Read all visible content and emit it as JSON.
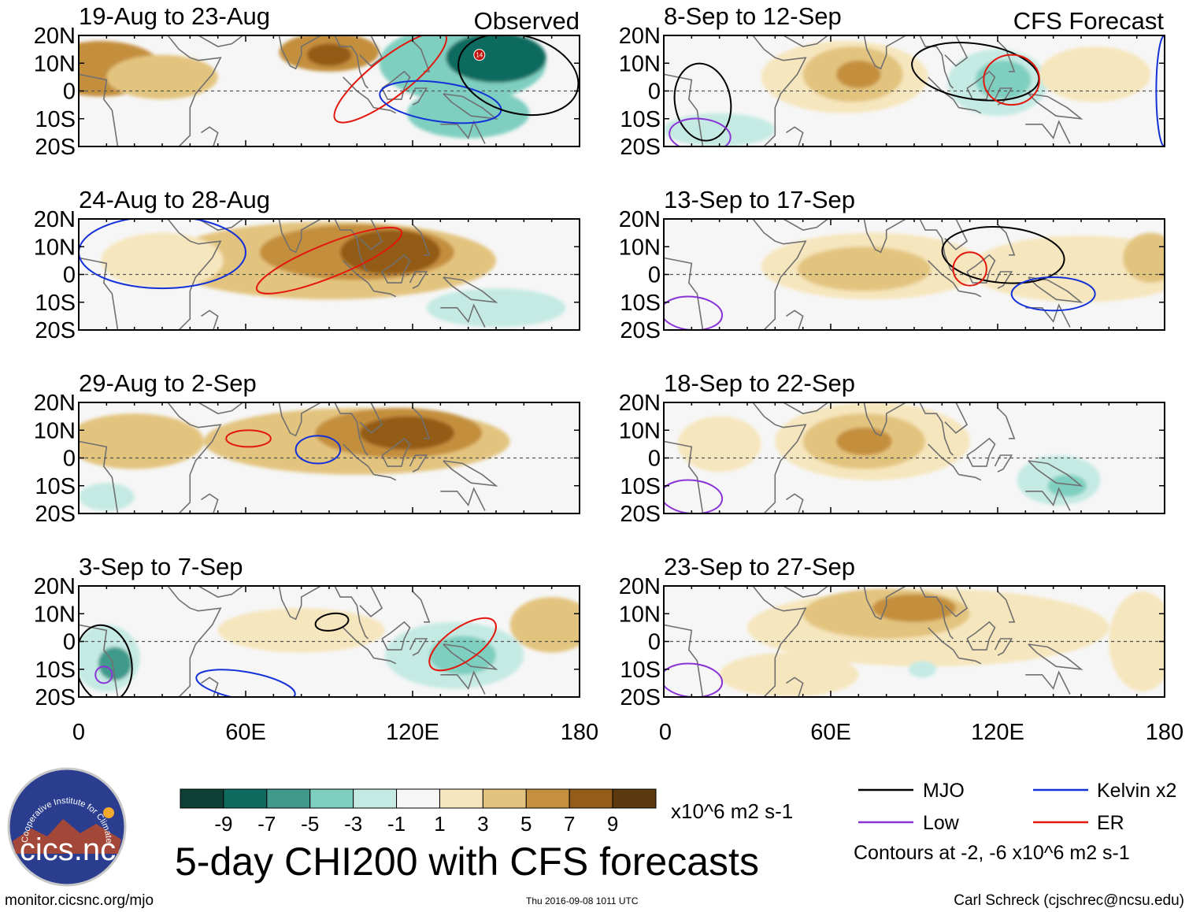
{
  "colors": {
    "scale": [
      "#0d3f36",
      "#0f6b5f",
      "#3f9a8c",
      "#7fcfc0",
      "#c5eae3",
      "#f6f6f6",
      "#f6e6bd",
      "#e3c47f",
      "#c48f3e",
      "#935c18",
      "#5a3810"
    ],
    "mjo": "#000000",
    "kelvin": "#1431d8",
    "low": "#8a33d6",
    "er": "#e2180e",
    "coast": "#707070"
  },
  "columns": {
    "left_label": "Observed",
    "right_label": "CFS Forecast"
  },
  "lat_labels": [
    "20N",
    "10N",
    "0",
    "10S",
    "20S"
  ],
  "lon_labels": [
    "0",
    "60E",
    "120E",
    "180"
  ],
  "panels": [
    {
      "title": "19-Aug to 23-Aug",
      "storm_label": "14",
      "blobs": [
        {
          "lon": 8,
          "lat": 8,
          "rx": 22,
          "ry": 10,
          "level": 3
        },
        {
          "lon": 90,
          "lat": 14,
          "rx": 18,
          "ry": 7,
          "level": 3
        },
        {
          "lon": 90,
          "lat": 13,
          "rx": 8,
          "ry": 4,
          "level": 4
        },
        {
          "lon": 30,
          "lat": 5,
          "rx": 20,
          "ry": 8,
          "level": 2
        },
        {
          "lon": 138,
          "lat": 10,
          "rx": 30,
          "ry": 14,
          "level": -2
        },
        {
          "lon": 150,
          "lat": 12,
          "rx": 18,
          "ry": 9,
          "level": -4
        },
        {
          "lon": 140,
          "lat": -8,
          "rx": 22,
          "ry": 9,
          "level": -2
        }
      ],
      "contours": [
        {
          "type": "er",
          "lon": 112,
          "lat": 5,
          "rx": 25,
          "ry": 7,
          "rot": -38
        },
        {
          "type": "kelvin",
          "lon": 130,
          "lat": -4,
          "rx": 22,
          "ry": 7,
          "rot": 8
        },
        {
          "type": "mjo",
          "lon": 158,
          "lat": 6,
          "rx": 22,
          "ry": 14,
          "rot": 15
        }
      ]
    },
    {
      "title": "24-Aug to 28-Aug",
      "blobs": [
        {
          "lon": 90,
          "lat": 5,
          "rx": 60,
          "ry": 14,
          "level": 2
        },
        {
          "lon": 100,
          "lat": 8,
          "rx": 35,
          "ry": 10,
          "level": 3
        },
        {
          "lon": 112,
          "lat": 8,
          "rx": 18,
          "ry": 8,
          "level": 4
        },
        {
          "lon": 30,
          "lat": 5,
          "rx": 22,
          "ry": 10,
          "level": 1
        },
        {
          "lon": 150,
          "lat": -12,
          "rx": 25,
          "ry": 7,
          "level": -1
        }
      ],
      "contours": [
        {
          "type": "kelvin",
          "lon": 30,
          "lat": 8,
          "rx": 30,
          "ry": 13,
          "rot": 0
        },
        {
          "type": "er",
          "lon": 90,
          "lat": 5,
          "rx": 28,
          "ry": 6,
          "rot": -22
        }
      ]
    },
    {
      "title": "29-Aug to 2-Sep",
      "blobs": [
        {
          "lon": 100,
          "lat": 6,
          "rx": 55,
          "ry": 12,
          "level": 2
        },
        {
          "lon": 115,
          "lat": 9,
          "rx": 30,
          "ry": 9,
          "level": 3
        },
        {
          "lon": 118,
          "lat": 9,
          "rx": 17,
          "ry": 6,
          "level": 4
        },
        {
          "lon": 20,
          "lat": 6,
          "rx": 25,
          "ry": 10,
          "level": 2
        },
        {
          "lon": 10,
          "lat": -14,
          "rx": 10,
          "ry": 5,
          "level": -1
        }
      ],
      "contours": [
        {
          "type": "er",
          "lon": 61,
          "lat": 7,
          "rx": 8,
          "ry": 3,
          "rot": 0
        },
        {
          "type": "kelvin",
          "lon": 86,
          "lat": 3,
          "rx": 8,
          "ry": 5,
          "rot": 0
        }
      ]
    },
    {
      "title": "3-Sep to 7-Sep",
      "blobs": [
        {
          "lon": 10,
          "lat": -6,
          "rx": 12,
          "ry": 12,
          "level": -1
        },
        {
          "lon": 13,
          "lat": -8,
          "rx": 6,
          "ry": 6,
          "level": -3
        },
        {
          "lon": 135,
          "lat": -5,
          "rx": 25,
          "ry": 12,
          "level": -1
        },
        {
          "lon": 138,
          "lat": -5,
          "rx": 12,
          "ry": 7,
          "level": -2
        },
        {
          "lon": 80,
          "lat": 4,
          "rx": 30,
          "ry": 8,
          "level": 1
        },
        {
          "lon": 170,
          "lat": 6,
          "rx": 15,
          "ry": 10,
          "level": 2
        }
      ],
      "contours": [
        {
          "type": "mjo",
          "lon": 9,
          "lat": -8,
          "rx": 10,
          "ry": 14,
          "rot": -10
        },
        {
          "type": "low",
          "lon": 9,
          "lat": -12,
          "rx": 3,
          "ry": 3,
          "rot": 0
        },
        {
          "type": "kelvin",
          "lon": 60,
          "lat": -16,
          "rx": 18,
          "ry": 5,
          "rot": 10
        },
        {
          "type": "mjo",
          "lon": 91,
          "lat": 7,
          "rx": 6,
          "ry": 3,
          "rot": -10
        },
        {
          "type": "er",
          "lon": 138,
          "lat": -1,
          "rx": 14,
          "ry": 6,
          "rot": -35
        }
      ]
    },
    {
      "title": "8-Sep to 12-Sep",
      "blobs": [
        {
          "lon": 65,
          "lat": 5,
          "rx": 30,
          "ry": 13,
          "level": 1
        },
        {
          "lon": 68,
          "lat": 6,
          "rx": 18,
          "ry": 10,
          "level": 2
        },
        {
          "lon": 70,
          "lat": 6,
          "rx": 8,
          "ry": 5,
          "level": 3
        },
        {
          "lon": 120,
          "lat": 3,
          "rx": 18,
          "ry": 12,
          "level": -1
        },
        {
          "lon": 122,
          "lat": 4,
          "rx": 10,
          "ry": 7,
          "level": -2
        },
        {
          "lon": 20,
          "lat": -14,
          "rx": 20,
          "ry": 6,
          "level": -1
        },
        {
          "lon": 155,
          "lat": 6,
          "rx": 20,
          "ry": 10,
          "level": 1
        }
      ],
      "contours": [
        {
          "type": "mjo",
          "lon": 112,
          "lat": 7,
          "rx": 23,
          "ry": 10,
          "rot": 8
        },
        {
          "type": "er",
          "lon": 125,
          "lat": 4,
          "rx": 10,
          "ry": 9,
          "rot": 0
        },
        {
          "type": "mjo",
          "lon": 14,
          "lat": -4,
          "rx": 10,
          "ry": 14,
          "rot": -10
        },
        {
          "type": "low",
          "lon": 13,
          "lat": -16,
          "rx": 11,
          "ry": 6,
          "rot": 5
        },
        {
          "type": "kelvin",
          "lon": 180,
          "lat": 0,
          "rx": 3,
          "ry": 20,
          "rot": 0
        }
      ]
    },
    {
      "title": "13-Sep to 17-Sep",
      "blobs": [
        {
          "lon": 75,
          "lat": 3,
          "rx": 40,
          "ry": 12,
          "level": 1
        },
        {
          "lon": 72,
          "lat": 2,
          "rx": 24,
          "ry": 8,
          "level": 2
        },
        {
          "lon": 150,
          "lat": 2,
          "rx": 40,
          "ry": 12,
          "level": 1
        },
        {
          "lon": 175,
          "lat": 6,
          "rx": 10,
          "ry": 9,
          "level": 2
        }
      ],
      "contours": [
        {
          "type": "mjo",
          "lon": 122,
          "lat": 7,
          "rx": 22,
          "ry": 10,
          "rot": 5
        },
        {
          "type": "er",
          "lon": 110,
          "lat": 2,
          "rx": 6,
          "ry": 6,
          "rot": 0
        },
        {
          "type": "kelvin",
          "lon": 140,
          "lat": -7,
          "rx": 15,
          "ry": 6,
          "rot": 0
        },
        {
          "type": "low",
          "lon": 10,
          "lat": -14,
          "rx": 11,
          "ry": 6,
          "rot": 5
        }
      ]
    },
    {
      "title": "18-Sep to 22-Sep",
      "blobs": [
        {
          "lon": 75,
          "lat": 6,
          "rx": 35,
          "ry": 14,
          "level": 1
        },
        {
          "lon": 72,
          "lat": 6,
          "rx": 22,
          "ry": 10,
          "level": 2
        },
        {
          "lon": 72,
          "lat": 6,
          "rx": 10,
          "ry": 5,
          "level": 3
        },
        {
          "lon": 20,
          "lat": 5,
          "rx": 15,
          "ry": 10,
          "level": 1
        },
        {
          "lon": 142,
          "lat": -8,
          "rx": 15,
          "ry": 9,
          "level": -1
        },
        {
          "lon": 145,
          "lat": -10,
          "rx": 7,
          "ry": 4,
          "level": -2
        }
      ],
      "contours": [
        {
          "type": "low",
          "lon": 10,
          "lat": -14,
          "rx": 11,
          "ry": 6,
          "rot": 5
        }
      ]
    },
    {
      "title": "23-Sep to 27-Sep",
      "blobs": [
        {
          "lon": 95,
          "lat": 5,
          "rx": 65,
          "ry": 14,
          "level": 1
        },
        {
          "lon": 80,
          "lat": 10,
          "rx": 30,
          "ry": 9,
          "level": 2
        },
        {
          "lon": 90,
          "lat": 12,
          "rx": 15,
          "ry": 5,
          "level": 3
        },
        {
          "lon": 172,
          "lat": 0,
          "rx": 12,
          "ry": 18,
          "level": 1
        },
        {
          "lon": 45,
          "lat": -12,
          "rx": 25,
          "ry": 8,
          "level": 1
        },
        {
          "lon": 93,
          "lat": -10,
          "rx": 5,
          "ry": 3,
          "level": -1
        }
      ],
      "contours": [
        {
          "type": "low",
          "lon": 10,
          "lat": -14,
          "rx": 11,
          "ry": 6,
          "rot": 5
        }
      ]
    }
  ],
  "colorbar": {
    "ticks": [
      "-9",
      "-7",
      "-5",
      "-3",
      "-1",
      "1",
      "3",
      "5",
      "7",
      "9"
    ],
    "units": "x10^6 m2 s-1"
  },
  "legend": {
    "mjo": "MJO",
    "kelvin": "Kelvin x2",
    "low": "Low",
    "er": "ER",
    "note": "Contours at -2, -6 x10^6 m2 s-1"
  },
  "title": "5-day CHI200 with CFS forecasts",
  "footer": {
    "website": "monitor.cicsnc.org/mjo",
    "timestamp": "Thu 2016-09-08 1011 UTC",
    "credit": "Carl Schreck (cjschrec@ncsu.edu)"
  },
  "logo": {
    "text": "cics.nc",
    "arc_text": "Cooperative Institute for Climate and Satellites"
  }
}
